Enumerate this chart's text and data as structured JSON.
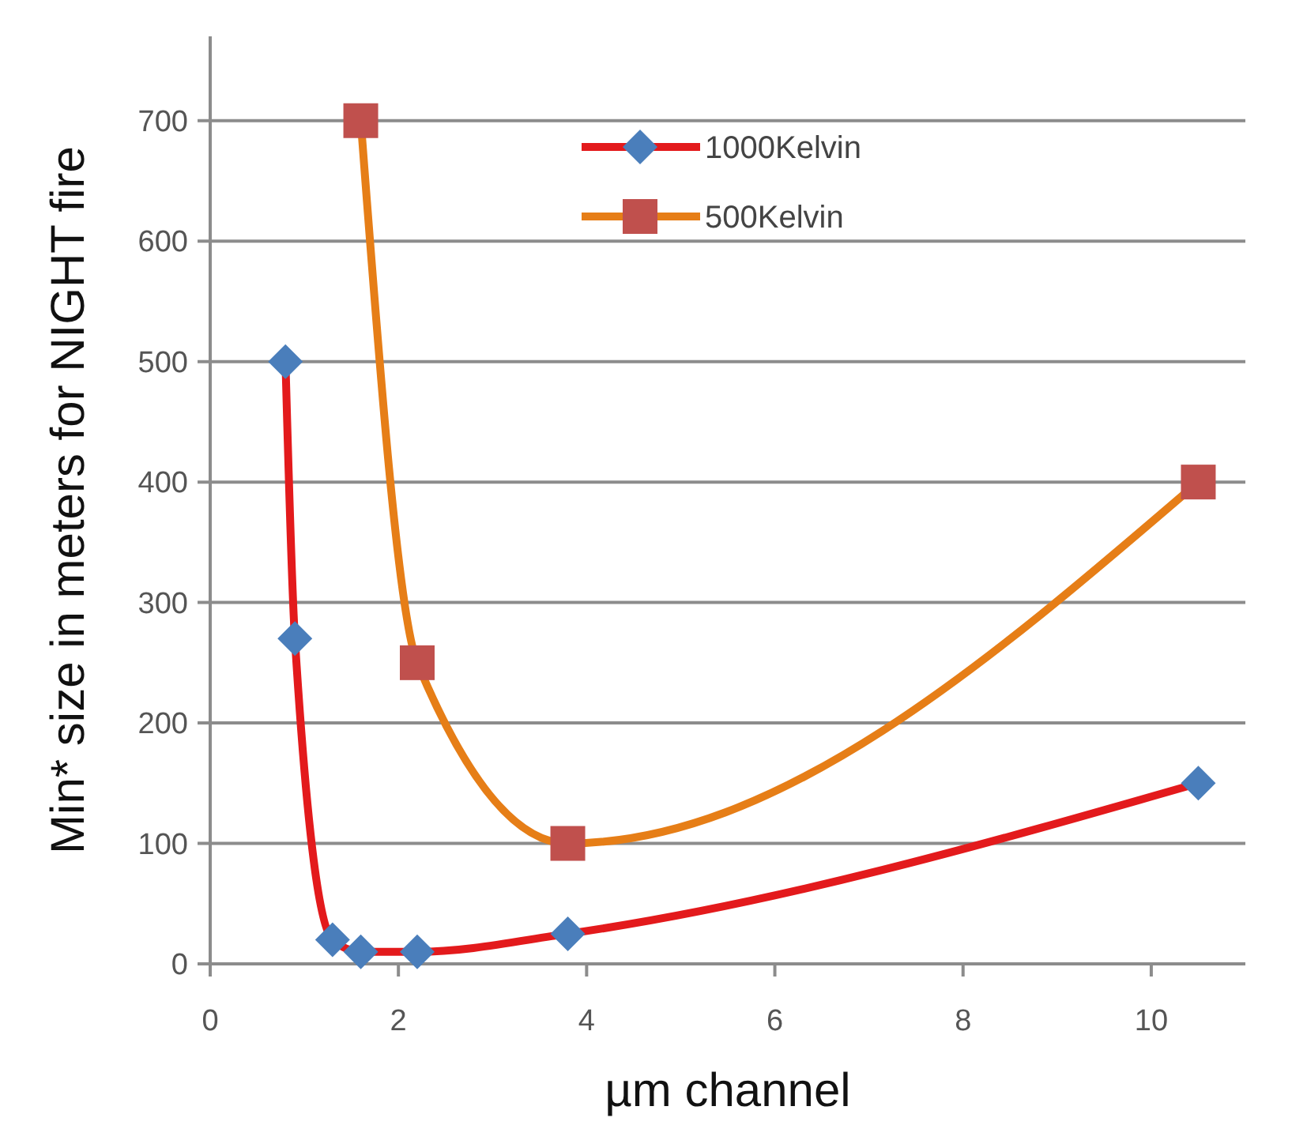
{
  "chart_data": {
    "type": "line",
    "xlabel": "µm channel",
    "ylabel": "Min* size in meters for NIGHT fire",
    "xlim": [
      0,
      11
    ],
    "xticks": [
      0,
      2,
      4,
      6,
      8,
      10
    ],
    "ylim": [
      0,
      770
    ],
    "yticks": [
      0,
      100,
      200,
      300,
      400,
      500,
      600,
      700
    ],
    "grid": "y",
    "legend": "top",
    "line_style": "solid",
    "series": [
      {
        "name": "1000Kelvin",
        "color": "#e31a1c",
        "marker": "diamond",
        "x": [
          0.8,
          0.9,
          1.3,
          1.6,
          2.2,
          3.8,
          10.5
        ],
        "values": [
          500,
          270,
          20,
          10,
          10,
          25,
          150
        ]
      },
      {
        "name": "500Kelvin",
        "color": "#e67e17",
        "marker": "square",
        "x": [
          1.6,
          2.2,
          3.8,
          10.5
        ],
        "values": [
          700,
          250,
          100,
          400
        ]
      }
    ]
  }
}
